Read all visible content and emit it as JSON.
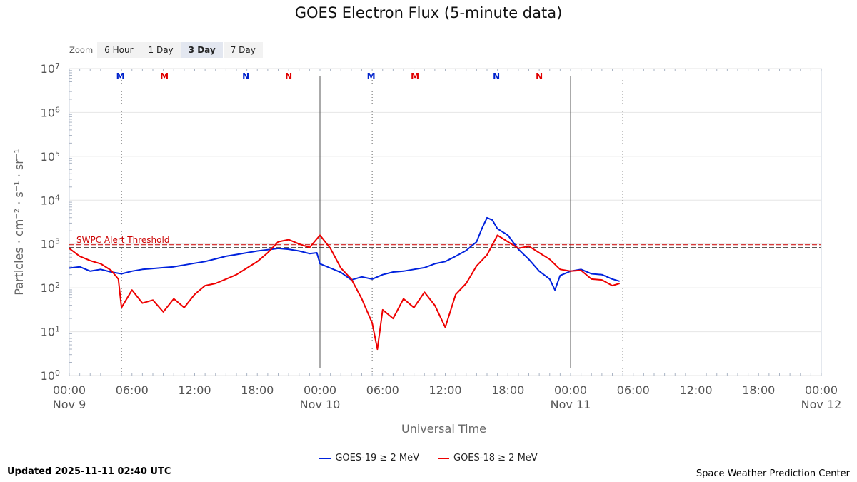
{
  "chart_data": {
    "type": "line",
    "title": "GOES Electron Flux (5-minute data)",
    "xlabel": "Universal Time",
    "ylabel": "Particles · cm⁻² · s⁻¹ · sr⁻¹",
    "x_range_hours": [
      0,
      72
    ],
    "y_log_range": [
      0,
      7
    ],
    "y_log_scale": true,
    "y_ticks": [
      {
        "base": "10",
        "exp": "0"
      },
      {
        "base": "10",
        "exp": "1"
      },
      {
        "base": "10",
        "exp": "2"
      },
      {
        "base": "10",
        "exp": "3"
      },
      {
        "base": "10",
        "exp": "4"
      },
      {
        "base": "10",
        "exp": "5"
      },
      {
        "base": "10",
        "exp": "6"
      },
      {
        "base": "10",
        "exp": "7"
      }
    ],
    "x_ticks": [
      {
        "hour": 0,
        "time": "00:00",
        "date": "Nov 9"
      },
      {
        "hour": 6,
        "time": "06:00",
        "date": ""
      },
      {
        "hour": 12,
        "time": "12:00",
        "date": ""
      },
      {
        "hour": 18,
        "time": "18:00",
        "date": ""
      },
      {
        "hour": 24,
        "time": "00:00",
        "date": "Nov 10"
      },
      {
        "hour": 30,
        "time": "06:00",
        "date": ""
      },
      {
        "hour": 36,
        "time": "12:00",
        "date": ""
      },
      {
        "hour": 42,
        "time": "18:00",
        "date": ""
      },
      {
        "hour": 48,
        "time": "00:00",
        "date": "Nov 11"
      },
      {
        "hour": 54,
        "time": "06:00",
        "date": ""
      },
      {
        "hour": 60,
        "time": "12:00",
        "date": ""
      },
      {
        "hour": 66,
        "time": "18:00",
        "date": ""
      },
      {
        "hour": 72,
        "time": "00:00",
        "date": "Nov 12"
      }
    ],
    "threshold": {
      "label": "SWPC Alert Threshold",
      "log_value": 2.95,
      "color": "#cc0000"
    },
    "day_lines_hours": [
      24,
      48
    ],
    "noon_lines_hours": [
      5,
      29,
      53
    ],
    "markers": [
      {
        "hour": 4.9,
        "label": "M",
        "color": "#0022cc"
      },
      {
        "hour": 9.1,
        "label": "M",
        "color": "#e00000"
      },
      {
        "hour": 16.9,
        "label": "N",
        "color": "#0022cc"
      },
      {
        "hour": 21.0,
        "label": "N",
        "color": "#e00000"
      },
      {
        "hour": 28.9,
        "label": "M",
        "color": "#0022cc"
      },
      {
        "hour": 33.1,
        "label": "M",
        "color": "#e00000"
      },
      {
        "hour": 40.9,
        "label": "N",
        "color": "#0022cc"
      },
      {
        "hour": 45.0,
        "label": "N",
        "color": "#e00000"
      }
    ],
    "series": [
      {
        "name": "GOES-19 ≥ 2 MeV",
        "color": "#0022dd",
        "points": [
          [
            0,
            2.45
          ],
          [
            1,
            2.48
          ],
          [
            2,
            2.38
          ],
          [
            3,
            2.42
          ],
          [
            4,
            2.36
          ],
          [
            5,
            2.32
          ],
          [
            6,
            2.38
          ],
          [
            7,
            2.42
          ],
          [
            8,
            2.44
          ],
          [
            9,
            2.46
          ],
          [
            10,
            2.48
          ],
          [
            11,
            2.52
          ],
          [
            12,
            2.56
          ],
          [
            13,
            2.6
          ],
          [
            14,
            2.66
          ],
          [
            15,
            2.72
          ],
          [
            16,
            2.76
          ],
          [
            17,
            2.8
          ],
          [
            18,
            2.84
          ],
          [
            19,
            2.87
          ],
          [
            20,
            2.9
          ],
          [
            21,
            2.88
          ],
          [
            22,
            2.84
          ],
          [
            23,
            2.78
          ],
          [
            23.7,
            2.8
          ],
          [
            24,
            2.55
          ],
          [
            25,
            2.45
          ],
          [
            26,
            2.35
          ],
          [
            27,
            2.18
          ],
          [
            28,
            2.25
          ],
          [
            29,
            2.2
          ],
          [
            30,
            2.3
          ],
          [
            31,
            2.36
          ],
          [
            32,
            2.38
          ],
          [
            33,
            2.42
          ],
          [
            34,
            2.46
          ],
          [
            35,
            2.55
          ],
          [
            36,
            2.6
          ],
          [
            37,
            2.72
          ],
          [
            38,
            2.85
          ],
          [
            39,
            3.05
          ],
          [
            39.5,
            3.35
          ],
          [
            40,
            3.6
          ],
          [
            40.5,
            3.55
          ],
          [
            41,
            3.35
          ],
          [
            42,
            3.2
          ],
          [
            43,
            2.88
          ],
          [
            44,
            2.65
          ],
          [
            45,
            2.38
          ],
          [
            46,
            2.2
          ],
          [
            46.5,
            1.95
          ],
          [
            47,
            2.28
          ],
          [
            48,
            2.38
          ],
          [
            49,
            2.42
          ],
          [
            50,
            2.32
          ],
          [
            51,
            2.3
          ],
          [
            52,
            2.2
          ],
          [
            52.7,
            2.15
          ]
        ]
      },
      {
        "name": "GOES-18 ≥ 2 MeV",
        "color": "#ee0000",
        "points": [
          [
            0,
            2.9
          ],
          [
            1,
            2.72
          ],
          [
            2,
            2.62
          ],
          [
            3,
            2.55
          ],
          [
            4,
            2.4
          ],
          [
            4.7,
            2.2
          ],
          [
            5,
            1.55
          ],
          [
            6,
            1.95
          ],
          [
            7,
            1.65
          ],
          [
            8,
            1.72
          ],
          [
            9,
            1.45
          ],
          [
            10,
            1.75
          ],
          [
            11,
            1.55
          ],
          [
            12,
            1.85
          ],
          [
            13,
            2.05
          ],
          [
            14,
            2.1
          ],
          [
            15,
            2.2
          ],
          [
            16,
            2.3
          ],
          [
            17,
            2.45
          ],
          [
            18,
            2.6
          ],
          [
            19,
            2.8
          ],
          [
            20,
            3.05
          ],
          [
            21,
            3.1
          ],
          [
            22,
            3.0
          ],
          [
            23,
            2.92
          ],
          [
            24,
            3.2
          ],
          [
            25,
            2.9
          ],
          [
            26,
            2.45
          ],
          [
            27,
            2.2
          ],
          [
            28,
            1.75
          ],
          [
            29,
            1.2
          ],
          [
            29.5,
            0.6
          ],
          [
            30,
            1.5
          ],
          [
            31,
            1.3
          ],
          [
            32,
            1.75
          ],
          [
            33,
            1.55
          ],
          [
            34,
            1.9
          ],
          [
            35,
            1.6
          ],
          [
            36,
            1.1
          ],
          [
            37,
            1.85
          ],
          [
            38,
            2.1
          ],
          [
            39,
            2.5
          ],
          [
            40,
            2.75
          ],
          [
            41,
            3.2
          ],
          [
            42,
            3.05
          ],
          [
            43,
            2.9
          ],
          [
            44,
            2.95
          ],
          [
            45,
            2.8
          ],
          [
            46,
            2.65
          ],
          [
            47,
            2.42
          ],
          [
            48,
            2.38
          ],
          [
            49,
            2.4
          ],
          [
            50,
            2.2
          ],
          [
            51,
            2.18
          ],
          [
            52,
            2.05
          ],
          [
            52.7,
            2.1
          ]
        ]
      }
    ]
  },
  "zoom": {
    "label": "Zoom",
    "buttons": [
      "6 Hour",
      "1 Day",
      "3 Day",
      "7 Day"
    ],
    "active": "3 Day"
  },
  "footer": {
    "updated": "Updated 2025-11-11 02:40 UTC",
    "credit": "Space Weather Prediction Center"
  }
}
